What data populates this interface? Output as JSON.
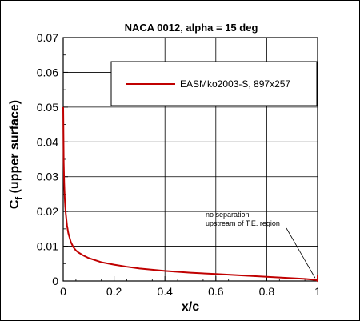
{
  "chart_data": {
    "type": "line",
    "title": "NACA 0012, alpha = 15 deg",
    "xlabel": "x/c",
    "ylabel_main": "C",
    "ylabel_sub": "f",
    "ylabel_rest": " (upper surface)",
    "xlim": [
      0,
      1
    ],
    "ylim": [
      0,
      0.07
    ],
    "xticks": [
      0,
      0.2,
      0.4,
      0.6,
      0.8,
      1
    ],
    "xtick_labels": [
      "0",
      "0.2",
      "0.4",
      "0.6",
      "0.8",
      "1"
    ],
    "yticks": [
      0,
      0.01,
      0.02,
      0.03,
      0.04,
      0.05,
      0.06,
      0.07
    ],
    "ytick_labels": [
      "0",
      "0.01",
      "0.02",
      "0.03",
      "0.04",
      "0.05",
      "0.06",
      "0.07"
    ],
    "grid": true,
    "legend_position": "top-right",
    "annotation": {
      "lines": [
        "no separation",
        "upstream of T.E. region"
      ],
      "target": [
        0.99,
        0.0002
      ]
    },
    "series": [
      {
        "name": "EASMko2003-S, 897x257",
        "color": "#c00000",
        "x": [
          0,
          0.002,
          0.004,
          0.006,
          0.008,
          0.01,
          0.015,
          0.02,
          0.03,
          0.04,
          0.05,
          0.06,
          0.08,
          0.1,
          0.15,
          0.2,
          0.25,
          0.3,
          0.4,
          0.5,
          0.6,
          0.7,
          0.8,
          0.9,
          0.95,
          0.98,
          0.99,
          0.995,
          1.0,
          1.0
        ],
        "y": [
          0.05,
          0.034,
          0.028,
          0.024,
          0.0215,
          0.0195,
          0.016,
          0.0138,
          0.0112,
          0.0097,
          0.0088,
          0.0082,
          0.0073,
          0.0066,
          0.0054,
          0.0047,
          0.0041,
          0.0036,
          0.0029,
          0.0024,
          0.002,
          0.0016,
          0.0012,
          0.0008,
          0.0006,
          0.0004,
          0.0003,
          0.0003,
          0.0,
          0.0018
        ]
      }
    ]
  }
}
